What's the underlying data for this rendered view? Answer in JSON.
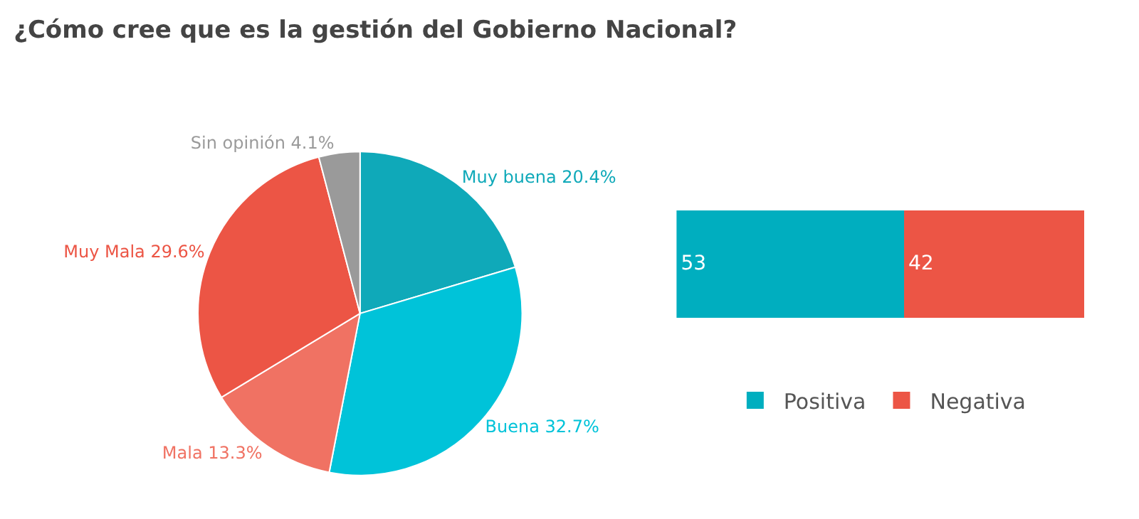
{
  "chart_data": [
    {
      "type": "pie",
      "title": "¿Cómo cree que es la gestión del Gobierno Nacional?",
      "categories": [
        "Muy buena",
        "Buena",
        "Mala",
        "Muy Mala",
        "Sin opinión"
      ],
      "values": [
        20.4,
        32.7,
        13.3,
        29.6,
        4.1
      ],
      "value_labels": [
        "20.4%",
        "32.7%",
        "13.3%",
        "29.6%",
        "4.1%"
      ],
      "colors": [
        "#0fa9b9",
        "#00c3d9",
        "#f07263",
        "#ec5545",
        "#9a9a9a"
      ],
      "legend": false
    },
    {
      "type": "bar",
      "orientation": "horizontal",
      "stacked": true,
      "categories": [
        null
      ],
      "series": [
        {
          "name": "Positiva",
          "color": "#00aebf",
          "values": [
            53
          ]
        },
        {
          "name": "Negativa",
          "color": "#ec5545",
          "values": [
            42
          ]
        }
      ],
      "data_labels": true,
      "legend": "bottom",
      "tick_labels": false
    }
  ]
}
